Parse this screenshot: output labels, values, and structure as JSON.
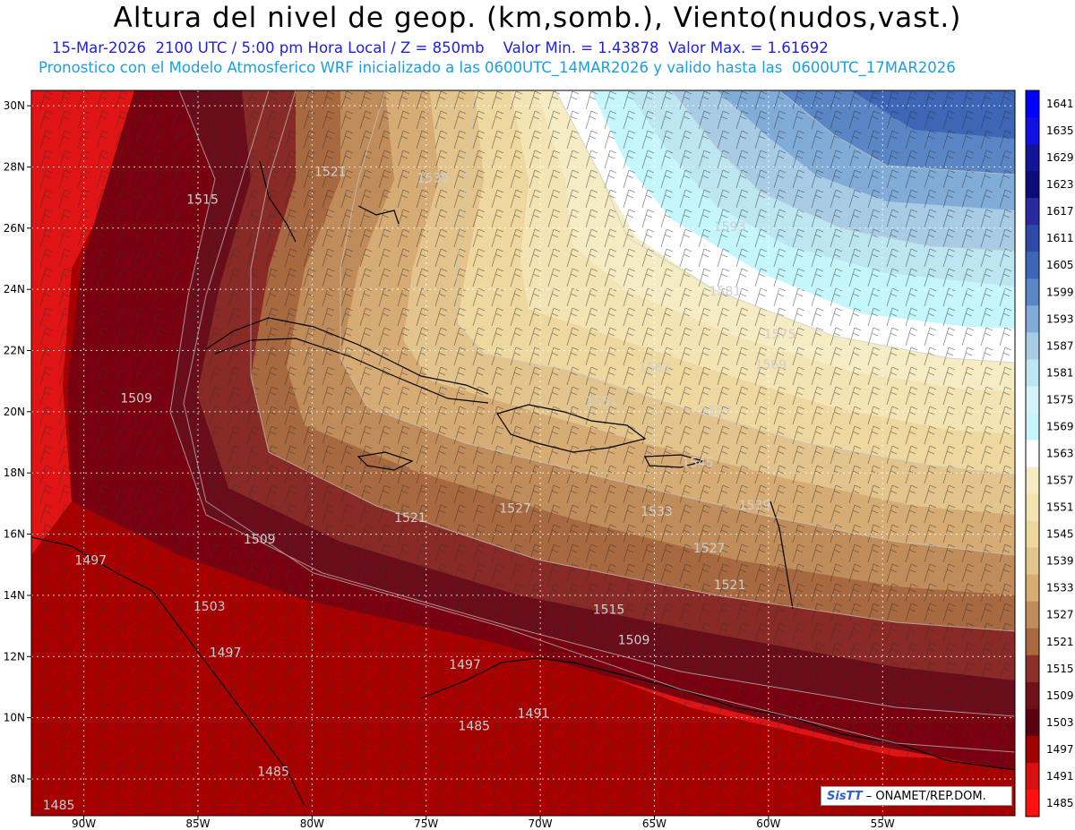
{
  "title": "Altura del nivel de geop. (km,somb.), Viento(nudos,vast.)",
  "subtitle_line1": "15-Mar-2026  2100 UTC / 5:00 pm Hora Local / Z = 850mb    Valor Min. = 1.43878  Valor Max. = 1.61692",
  "subtitle_line2": "Pronostico con el Modelo Atmosferico WRF inicializado a las 0600UTC_14MAR2026 y valido hasta las  0600UTC_17MAR2026",
  "credit": {
    "logo": "SisTT",
    "text": "– ONAMET/REP.DOM."
  },
  "map": {
    "lon_range": [
      -92.3,
      -49.2
    ],
    "lat_range": [
      6.8,
      30.5
    ],
    "lat_ticks": [
      "30N",
      "28N",
      "26N",
      "24N",
      "22N",
      "20N",
      "18N",
      "16N",
      "14N",
      "12N",
      "10N",
      "8N"
    ],
    "lon_ticks": [
      "90W",
      "85W",
      "80W",
      "75W",
      "70W",
      "65W",
      "60W",
      "55W"
    ],
    "contour_labels": [
      {
        "text": "1515",
        "lon": -84.8,
        "lat": 26.8
      },
      {
        "text": "1521",
        "lon": -79.2,
        "lat": 27.7
      },
      {
        "text": "1539",
        "lon": -74.7,
        "lat": 27.5
      },
      {
        "text": "1593",
        "lon": -61.7,
        "lat": 25.9
      },
      {
        "text": "1581",
        "lon": -61.9,
        "lat": 23.8
      },
      {
        "text": "1575",
        "lon": -59.5,
        "lat": 22.4
      },
      {
        "text": "1569",
        "lon": -59.9,
        "lat": 21.4
      },
      {
        "text": "1563",
        "lon": -65.0,
        "lat": 21.3
      },
      {
        "text": "1551",
        "lon": -67.3,
        "lat": 20.2
      },
      {
        "text": "1557",
        "lon": -62.3,
        "lat": 19.9
      },
      {
        "text": "1545",
        "lon": -63.1,
        "lat": 18.2
      },
      {
        "text": "1539",
        "lon": -60.6,
        "lat": 16.8
      },
      {
        "text": "1533",
        "lon": -64.9,
        "lat": 16.6
      },
      {
        "text": "1527",
        "lon": -71.1,
        "lat": 16.7
      },
      {
        "text": "1527",
        "lon": -62.6,
        "lat": 15.4
      },
      {
        "text": "1521",
        "lon": -75.7,
        "lat": 16.4
      },
      {
        "text": "1521",
        "lon": -61.7,
        "lat": 14.2
      },
      {
        "text": "1509",
        "lon": -87.7,
        "lat": 20.3
      },
      {
        "text": "1509",
        "lon": -82.3,
        "lat": 15.7
      },
      {
        "text": "1509",
        "lon": -65.9,
        "lat": 12.4
      },
      {
        "text": "1515",
        "lon": -67.0,
        "lat": 13.4
      },
      {
        "text": "1503",
        "lon": -84.5,
        "lat": 13.5
      },
      {
        "text": "1497",
        "lon": -89.7,
        "lat": 15.0
      },
      {
        "text": "1497",
        "lon": -83.8,
        "lat": 12.0
      },
      {
        "text": "1497",
        "lon": -73.3,
        "lat": 11.6
      },
      {
        "text": "1491",
        "lon": -70.3,
        "lat": 10.0
      },
      {
        "text": "1485",
        "lon": -72.9,
        "lat": 9.6
      },
      {
        "text": "1485",
        "lon": -81.7,
        "lat": 8.1
      },
      {
        "text": "1485",
        "lon": -91.1,
        "lat": 7.0
      }
    ]
  },
  "colorbar": {
    "levels": [
      "1641",
      "1635",
      "1629",
      "1623",
      "1617",
      "1611",
      "1605",
      "1599",
      "1593",
      "1587",
      "1581",
      "1575",
      "1569",
      "1563",
      "1557",
      "1551",
      "1545",
      "1539",
      "1533",
      "1527",
      "1521",
      "1515",
      "1509",
      "1503",
      "1497",
      "1491",
      "1485"
    ],
    "colors": [
      "#0000ff",
      "#1010e0",
      "#141496",
      "#0c0c78",
      "#2a2aa0",
      "#2e4aa8",
      "#3e66b6",
      "#5a86c6",
      "#82acd8",
      "#a8cce6",
      "#bce6f2",
      "#d4f4fa",
      "#c4f6fc",
      "#ffffff",
      "#f6ecc4",
      "#f4e4b4",
      "#eed8a0",
      "#e2c48c",
      "#d6ac74",
      "#c08c5a",
      "#a86840",
      "#8a3028",
      "#701018",
      "#5a0010",
      "#a00000",
      "#d81010",
      "#ff1010"
    ]
  }
}
